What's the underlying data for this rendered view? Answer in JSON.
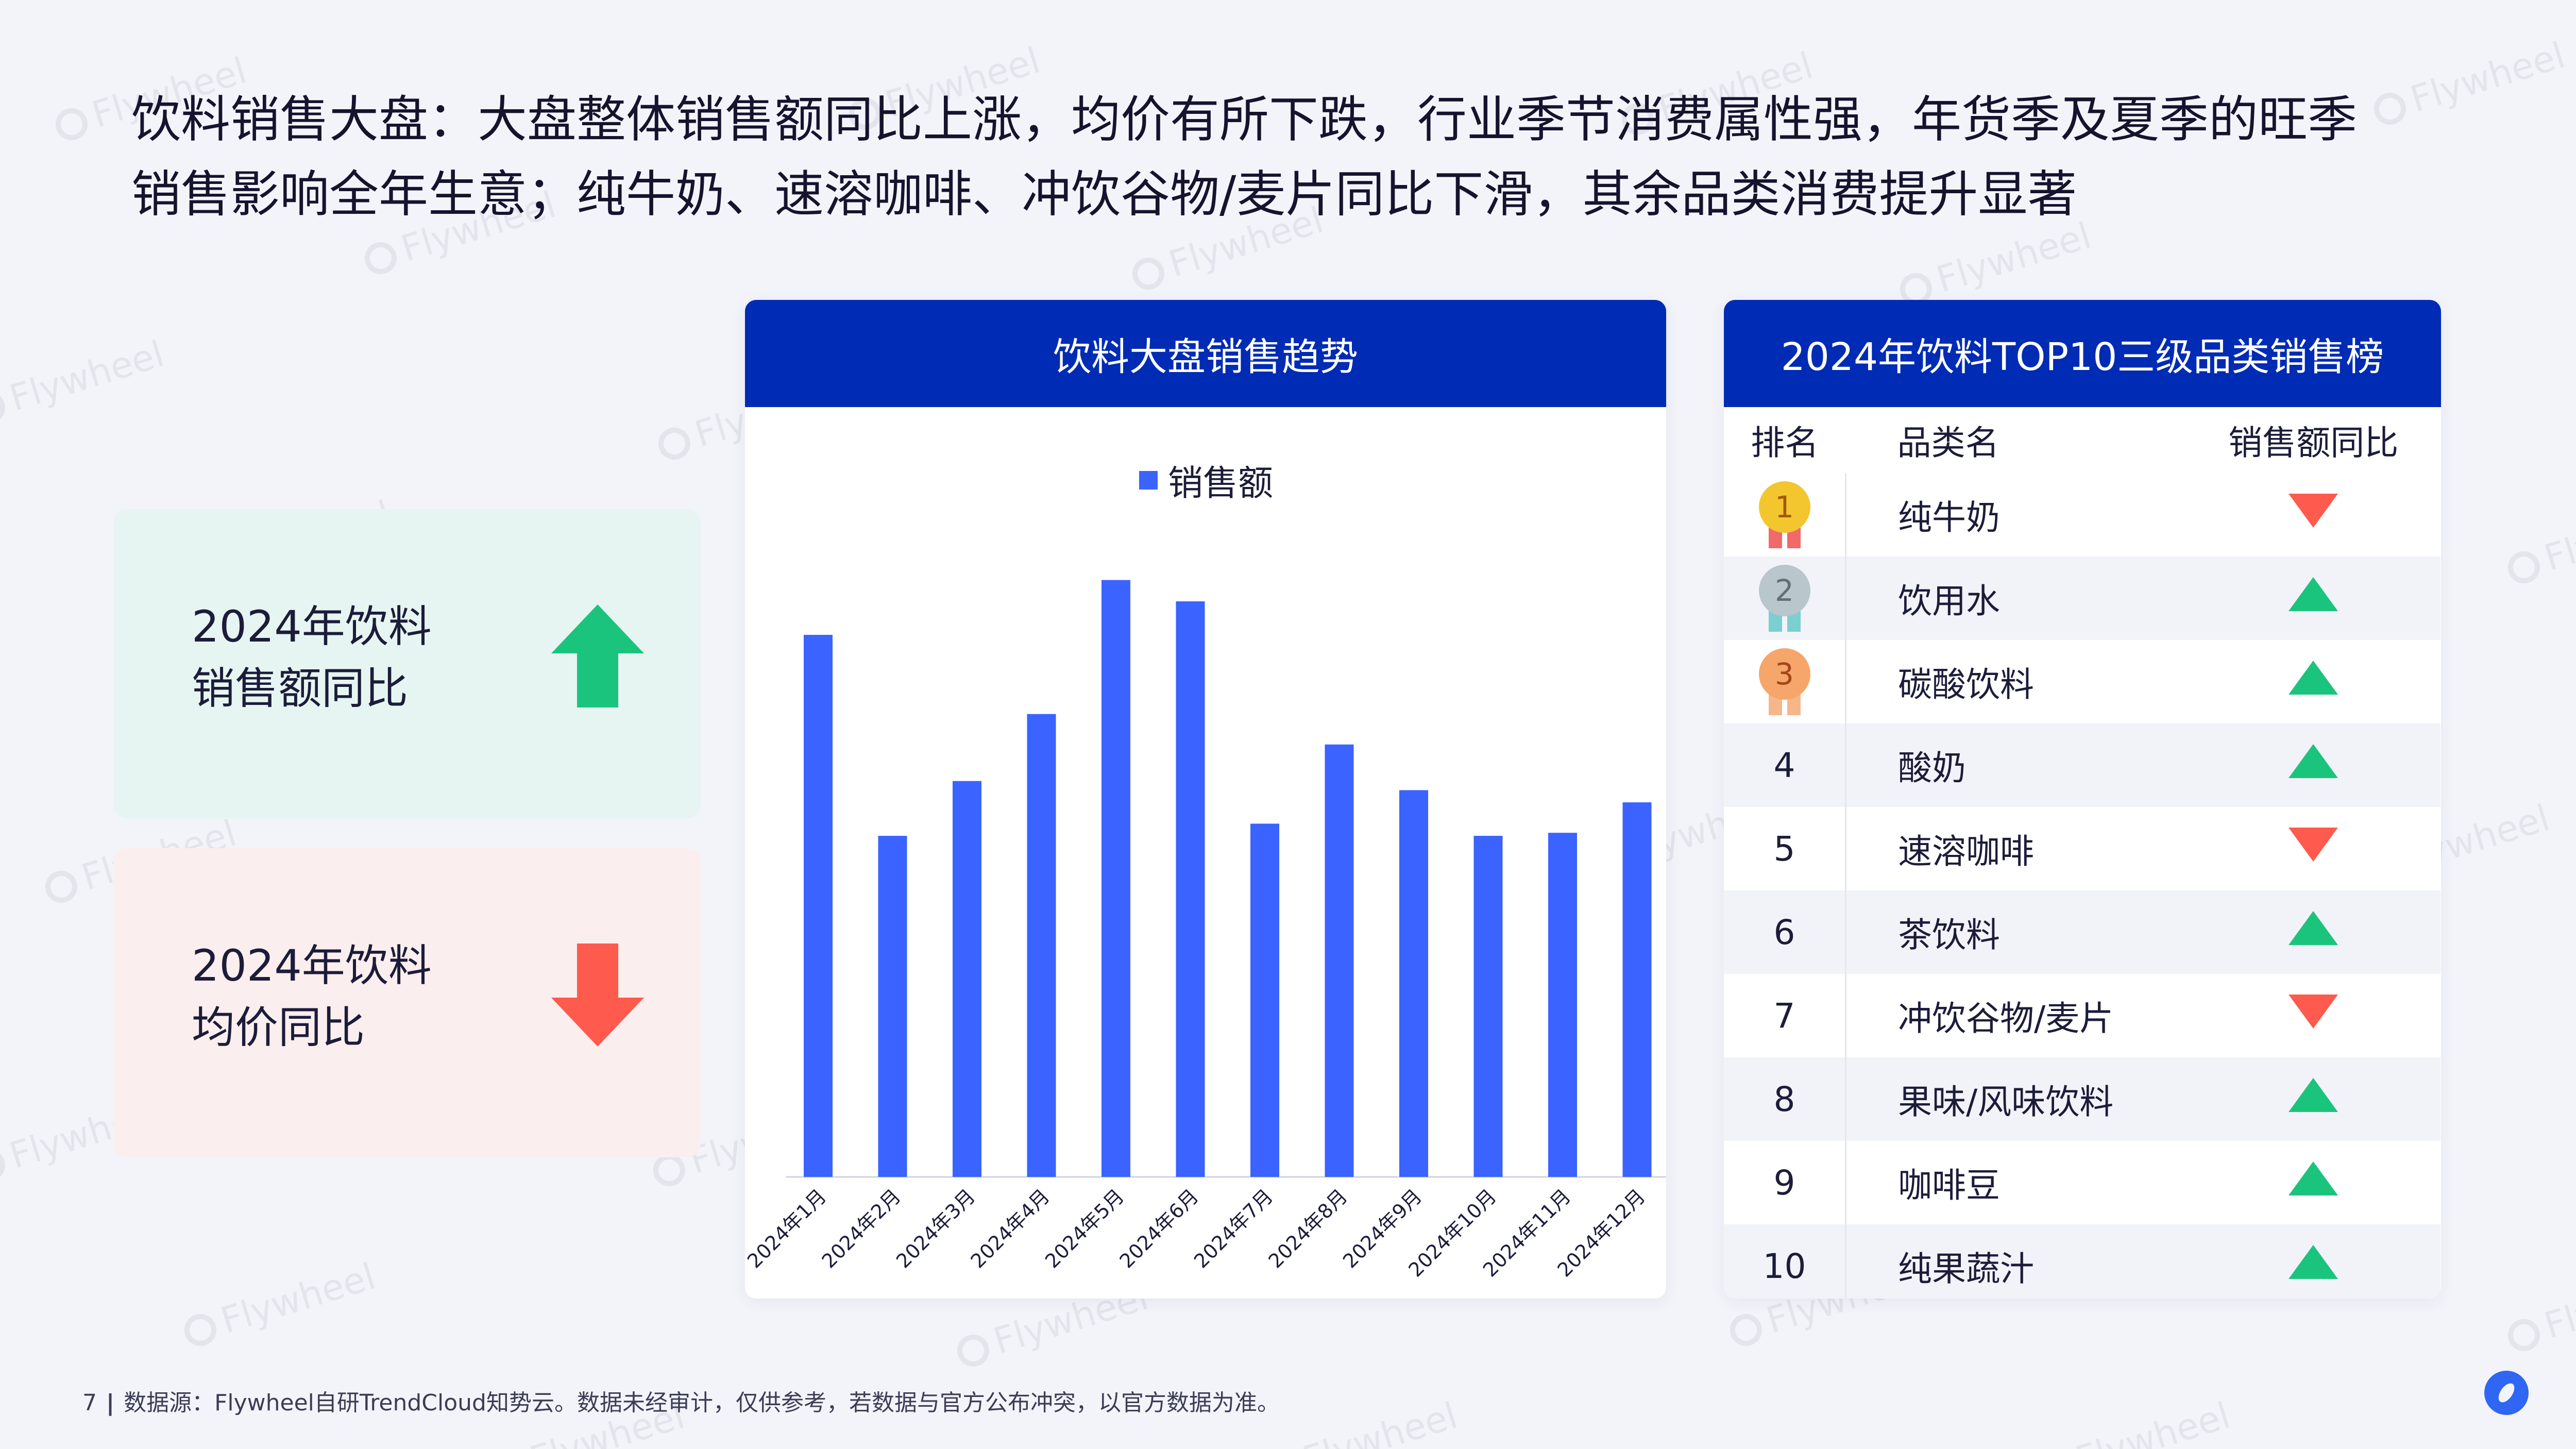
{
  "headline": {
    "line1": "饮料销售大盘：大盘整体销售额同比上涨，均价有所下跌，行业季节消费属性强，年货季及夏季的旺季",
    "line2": "销售影响全年生意；纯牛奶、速溶咖啡、冲饮谷物/麦片同比下滑，其余品类消费提升显著"
  },
  "watermark": "Flywheel",
  "kpis": [
    {
      "line1": "2024年饮料",
      "line2": "销售额同比",
      "direction": "up",
      "color": "#1bc47d"
    },
    {
      "line1": "2024年饮料",
      "line2": "均价同比",
      "direction": "down",
      "color": "#ff5a4e"
    }
  ],
  "chart_panel": {
    "title": "饮料大盘销售趋势"
  },
  "chart_data": {
    "type": "bar",
    "categories": [
      "2024年1月",
      "2024年2月",
      "2024年3月",
      "2024年4月",
      "2024年5月",
      "2024年6月",
      "2024年7月",
      "2024年8月",
      "2024年9月",
      "2024年10月",
      "2024年11月",
      "2024年12月"
    ],
    "series": [
      {
        "name": "销售额",
        "color": "#3a63ff",
        "values": [
          89,
          56,
          65,
          76,
          98,
          94.5,
          58,
          71,
          63.5,
          56,
          56.5,
          61.5
        ]
      }
    ],
    "value_scale": "relative (no y-axis printed)",
    "ylim": [
      0,
      100
    ],
    "legend_position": "top-center",
    "grid": false
  },
  "rank_panel": {
    "title": "2024年饮料TOP10三级品类销售榜",
    "headers": {
      "rank": "排名",
      "name": "品类名",
      "trend": "销售额同比"
    },
    "rows": [
      {
        "rank": "1",
        "name": "纯牛奶",
        "trend": "down"
      },
      {
        "rank": "2",
        "name": "饮用水",
        "trend": "up"
      },
      {
        "rank": "3",
        "name": "碳酸饮料",
        "trend": "up"
      },
      {
        "rank": "4",
        "name": "酸奶",
        "trend": "up"
      },
      {
        "rank": "5",
        "name": "速溶咖啡",
        "trend": "down"
      },
      {
        "rank": "6",
        "name": "茶饮料",
        "trend": "up"
      },
      {
        "rank": "7",
        "name": "冲饮谷物/麦片",
        "trend": "down"
      },
      {
        "rank": "8",
        "name": "果味/风味饮料",
        "trend": "up"
      },
      {
        "rank": "9",
        "name": "咖啡豆",
        "trend": "up"
      },
      {
        "rank": "10",
        "name": "纯果蔬汁",
        "trend": "up"
      }
    ],
    "medal_colors": {
      "1": "#f3c630",
      "2": "#b9c6cc",
      "3": "#f6a66a"
    }
  },
  "footer": {
    "page_number": "7",
    "source": "数据源：Flywheel自研TrendCloud知势云。数据未经审计，仅供参考，若数据与官方公布冲突，以官方数据为准。"
  }
}
